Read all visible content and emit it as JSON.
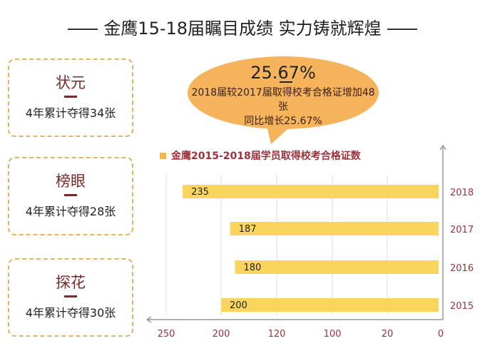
{
  "title": "金鹰15-18届瞩目成绩  实力铸就辉煌",
  "boxes": [
    {
      "heading": "状元",
      "text": "4年累计夺得34张"
    },
    {
      "heading": "榜眼",
      "text": "4年累计夺得28张"
    },
    {
      "heading": "探花",
      "text": "4年累计夺得30张"
    }
  ],
  "bubble": {
    "big": "25.67%",
    "line1": "2018届较2017届取得校考合格证增加48张",
    "line2": "同比增长25.67%",
    "color": "#f5b45c"
  },
  "chart_data": {
    "type": "bar",
    "orientation": "horizontal-right-anchored",
    "legend": "金鹰2015-2018届学员取得校考合格证数",
    "legend_placement": "top-left",
    "categories": [
      "2018",
      "2017",
      "2016",
      "2015"
    ],
    "values": [
      235,
      187,
      180,
      200
    ],
    "x_ticks": [
      250,
      200,
      120,
      100,
      20,
      0
    ],
    "grid": true,
    "bar_color": "#fad55e",
    "label_color": "#a0303a"
  }
}
